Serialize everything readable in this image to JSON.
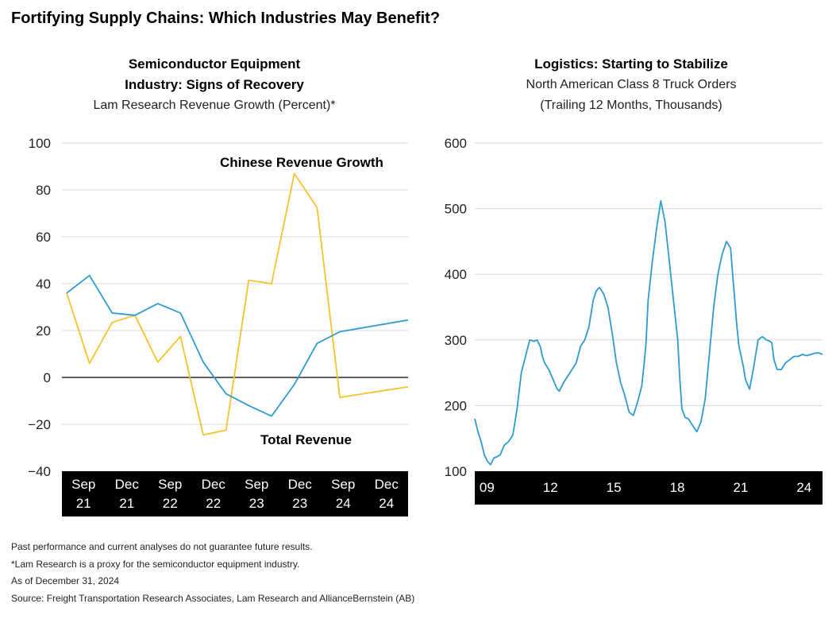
{
  "page": {
    "title": "Fortifying Supply Chains: Which Industries May Benefit?",
    "footnotes": [
      "Past performance and current analyses do not guarantee future results.",
      "*Lam Research is a proxy for the semiconductor equipment industry.",
      "As of December 31, 2024",
      "Source: Freight Transportation Research Associates, Lam Research and AllianceBernstein (AB)"
    ]
  },
  "colors": {
    "blue": "#2e9bd0",
    "yellow": "#f7c22e",
    "axis_band": "#000000",
    "grid": "#d9d9d9"
  },
  "chart_data": [
    {
      "type": "line",
      "title": "Semiconductor Equipment Industry: Signs of Recovery",
      "title_lines": [
        "Semiconductor Equipment",
        "Industry: Signs of Recovery"
      ],
      "subtitle": "Lam Research Revenue Growth (Percent)*",
      "x_ticks": [
        {
          "top": "Sep",
          "bottom": "21"
        },
        {
          "top": "Dec",
          "bottom": "21"
        },
        {
          "top": "Sep",
          "bottom": "22"
        },
        {
          "top": "Dec",
          "bottom": "22"
        },
        {
          "top": "Sep",
          "bottom": "23"
        },
        {
          "top": "Dec",
          "bottom": "23"
        },
        {
          "top": "Sep",
          "bottom": "24"
        },
        {
          "top": "Dec",
          "bottom": "24"
        }
      ],
      "x_range": [
        0,
        15
      ],
      "ylim": [
        -40,
        100
      ],
      "y_ticks": [
        100,
        80,
        60,
        40,
        20,
        0,
        -20,
        -40
      ],
      "y_tick_labels": [
        "100",
        "80",
        "60",
        "40",
        "20",
        "0",
        "−20",
        "−40"
      ],
      "grid": true,
      "series": [
        {
          "name": "Chinese Revenue Growth",
          "color": "#f7c22e",
          "x": [
            0,
            1,
            2,
            3,
            4,
            5,
            6,
            7,
            8,
            9,
            10,
            11,
            12,
            13,
            14,
            15
          ],
          "values": [
            36,
            6,
            23.5,
            26.5,
            6.5,
            17.5,
            -24.5,
            -22.5,
            41.5,
            40,
            87,
            72.5,
            -8.5,
            null,
            null,
            -4
          ]
        },
        {
          "name": "Total Revenue",
          "color": "#2e9bd0",
          "x": [
            0,
            1,
            2,
            3,
            4,
            5,
            6,
            7,
            8,
            9,
            10,
            11,
            12,
            13,
            14,
            15
          ],
          "values": [
            36,
            43.5,
            27.5,
            26.5,
            31.5,
            27.5,
            6.5,
            -7,
            -12,
            -16.5,
            -3,
            14.5,
            19.5,
            null,
            null,
            24.5
          ]
        }
      ]
    },
    {
      "type": "line",
      "title": "Logistics: Starting to Stabilize",
      "subtitle_lines": [
        "North American Class 8 Truck Orders",
        "(Trailing 12 Months, Thousands)"
      ],
      "x_ticks": [
        "09",
        "12",
        "15",
        "18",
        "21",
        "24"
      ],
      "x_tick_values": [
        2009,
        2012,
        2015,
        2018,
        2021,
        2024
      ],
      "x_range": [
        2008.8,
        2025.25
      ],
      "ylim": [
        100,
        600
      ],
      "y_ticks": [
        600,
        500,
        400,
        300,
        200,
        100
      ],
      "grid": true,
      "series": [
        {
          "color": "#2e9bd0",
          "x": [
            2008.8,
            2008.95,
            2009.1,
            2009.25,
            2009.4,
            2009.55,
            2009.7,
            2009.85,
            2010.0,
            2010.2,
            2010.4,
            2010.6,
            2010.8,
            2011.0,
            2011.2,
            2011.4,
            2011.6,
            2011.75,
            2011.9,
            2012.0,
            2012.1,
            2012.3,
            2012.5,
            2012.7,
            2012.8,
            2013.0,
            2013.2,
            2013.4,
            2013.6,
            2013.8,
            2014.0,
            2014.2,
            2014.4,
            2014.55,
            2014.7,
            2014.9,
            2015.1,
            2015.3,
            2015.5,
            2015.7,
            2015.9,
            2016.1,
            2016.3,
            2016.5,
            2016.7,
            2016.8,
            2016.9,
            2017.0,
            2017.2,
            2017.4,
            2017.6,
            2017.8,
            2018.0,
            2018.2,
            2018.4,
            2018.5,
            2018.6,
            2018.75,
            2018.9,
            2019.1,
            2019.3,
            2019.5,
            2019.7,
            2019.9,
            2020.1,
            2020.3,
            2020.5,
            2020.7,
            2020.9,
            2021.0,
            2021.1,
            2021.2,
            2021.3,
            2021.4,
            2021.5,
            2021.6,
            2021.8,
            2022.0,
            2022.2,
            2022.4,
            2022.6,
            2022.75,
            2022.85,
            2022.95,
            2023.1,
            2023.3,
            2023.5,
            2023.7,
            2023.9,
            2024.1,
            2024.3,
            2024.5,
            2024.7,
            2024.9,
            2025.1,
            2025.25
          ],
          "values": [
            180,
            160,
            145,
            125,
            115,
            110,
            120,
            122,
            125,
            140,
            145,
            155,
            195,
            250,
            275,
            300,
            298,
            300,
            290,
            275,
            265,
            255,
            240,
            225,
            222,
            235,
            245,
            255,
            265,
            290,
            300,
            320,
            360,
            375,
            380,
            370,
            350,
            310,
            265,
            235,
            215,
            190,
            185,
            205,
            230,
            260,
            295,
            360,
            420,
            470,
            512,
            480,
            420,
            360,
            300,
            240,
            195,
            182,
            180,
            170,
            160,
            175,
            210,
            280,
            350,
            400,
            430,
            450,
            440,
            400,
            360,
            320,
            290,
            275,
            260,
            240,
            225,
            260,
            300,
            305,
            300,
            298,
            296,
            270,
            255,
            255,
            265,
            270,
            275,
            275,
            278,
            276,
            278,
            280,
            280,
            278
          ]
        }
      ]
    }
  ],
  "annotations": {
    "chinese_label": "Chinese Revenue Growth",
    "total_label": "Total Revenue"
  }
}
